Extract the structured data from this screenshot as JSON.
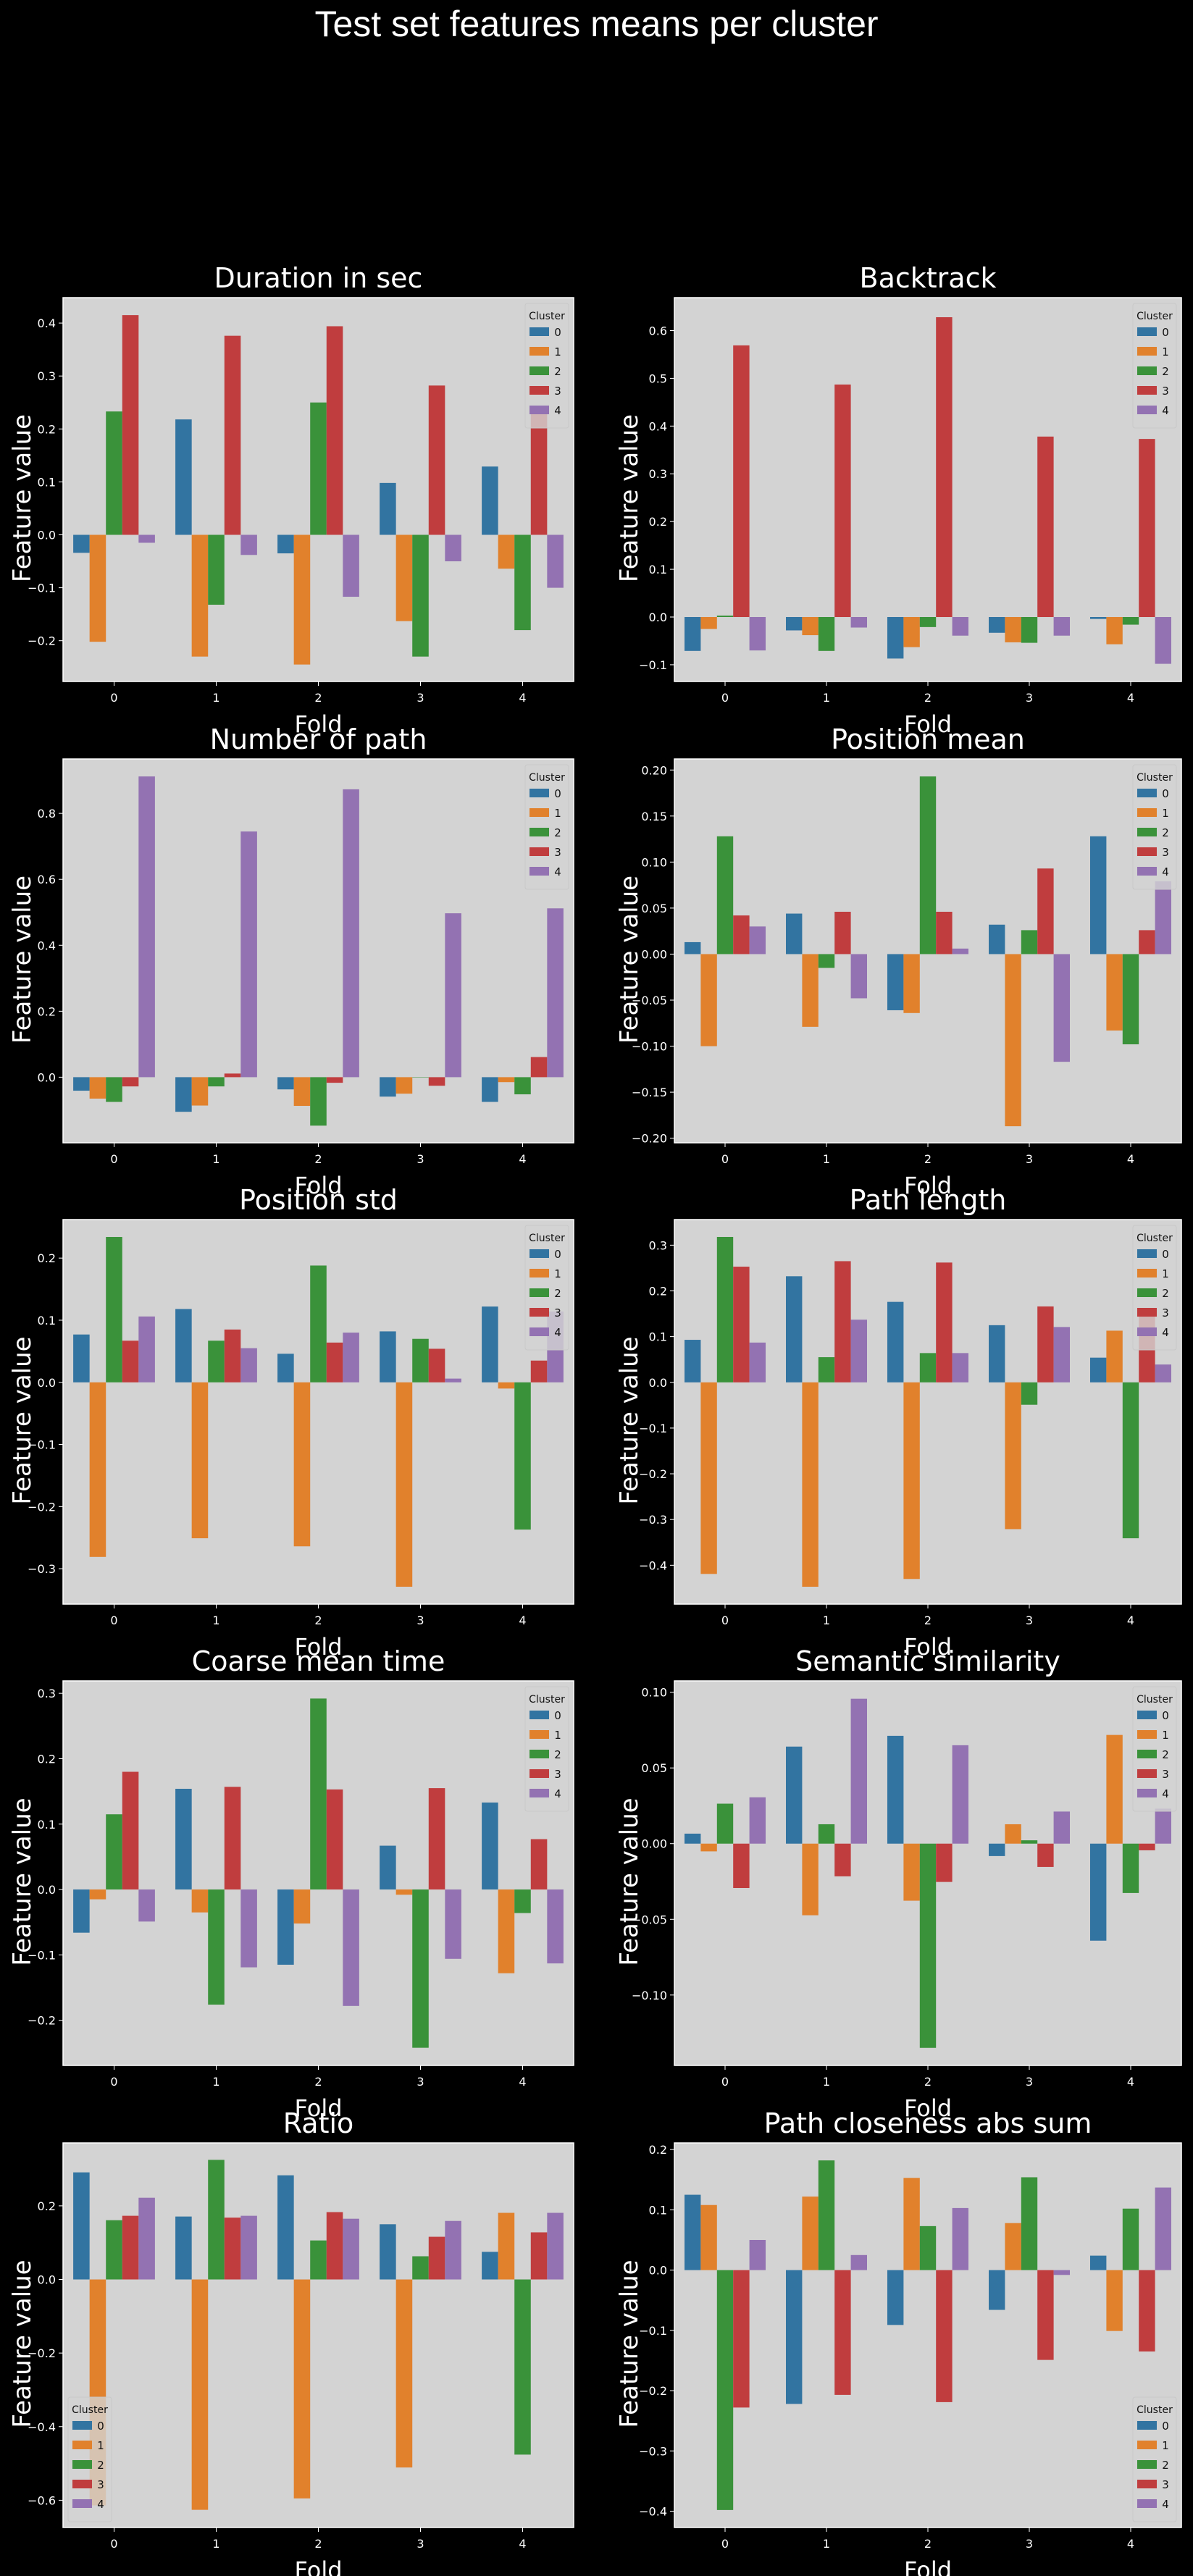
{
  "suptitle": "Test set features means per cluster",
  "colors": {
    "background": "#000000",
    "axes_face": "#d3d3d3",
    "text": "#ffffff",
    "palette": [
      "#3274a1",
      "#e1812c",
      "#3a923a",
      "#c03d3e",
      "#9372b2"
    ]
  },
  "chart_data": [
    {
      "type": "bar",
      "title": "Duration in sec",
      "xlabel": "Fold",
      "ylabel": "Feature value",
      "categories": [
        "0",
        "1",
        "2",
        "3",
        "4"
      ],
      "ylim": [
        -0.277,
        0.448
      ],
      "yticks": [
        -0.2,
        -0.1,
        0.0,
        0.1,
        0.2,
        0.3,
        0.4
      ],
      "ytick_labels": [
        "−0.2",
        "−0.1",
        "0.0",
        "0.1",
        "0.2",
        "0.3",
        "0.4"
      ],
      "legend": {
        "title": "Cluster",
        "placement": "upper right"
      },
      "series": [
        {
          "name": "0",
          "values": [
            -0.034,
            0.218,
            -0.035,
            0.098,
            0.129
          ]
        },
        {
          "name": "1",
          "values": [
            -0.202,
            -0.23,
            -0.245,
            -0.163,
            -0.064
          ]
        },
        {
          "name": "2",
          "values": [
            0.233,
            -0.132,
            0.25,
            -0.23,
            -0.18
          ]
        },
        {
          "name": "3",
          "values": [
            0.415,
            0.376,
            0.394,
            0.282,
            0.23
          ]
        },
        {
          "name": "4",
          "values": [
            -0.015,
            -0.038,
            -0.117,
            -0.05,
            -0.1
          ]
        }
      ]
    },
    {
      "type": "bar",
      "title": "Backtrack",
      "xlabel": "Fold",
      "ylabel": "Feature value",
      "categories": [
        "0",
        "1",
        "2",
        "3",
        "4"
      ],
      "ylim": [
        -0.135,
        0.669
      ],
      "yticks": [
        -0.1,
        0.0,
        0.1,
        0.2,
        0.3,
        0.4,
        0.5,
        0.6
      ],
      "ytick_labels": [
        "−0.1",
        "0.0",
        "0.1",
        "0.2",
        "0.3",
        "0.4",
        "0.5",
        "0.6"
      ],
      "legend": {
        "title": "Cluster",
        "placement": "upper right"
      },
      "series": [
        {
          "name": "0",
          "values": [
            -0.071,
            -0.028,
            -0.087,
            -0.033,
            -0.004
          ]
        },
        {
          "name": "1",
          "values": [
            -0.025,
            -0.038,
            -0.063,
            -0.053,
            -0.057
          ]
        },
        {
          "name": "2",
          "values": [
            0.003,
            -0.071,
            -0.021,
            -0.054,
            -0.016
          ]
        },
        {
          "name": "3",
          "values": [
            0.569,
            0.487,
            0.628,
            0.378,
            0.373
          ]
        },
        {
          "name": "4",
          "values": [
            -0.07,
            -0.022,
            -0.039,
            -0.039,
            -0.098
          ]
        }
      ]
    },
    {
      "type": "bar",
      "title": "Number of path",
      "xlabel": "Fold",
      "ylabel": "Feature value",
      "categories": [
        "0",
        "1",
        "2",
        "3",
        "4"
      ],
      "ylim": [
        -0.199,
        0.965
      ],
      "yticks": [
        0.0,
        0.2,
        0.4,
        0.6,
        0.8
      ],
      "ytick_labels": [
        "0.0",
        "0.2",
        "0.4",
        "0.6",
        "0.8"
      ],
      "legend": {
        "title": "Cluster",
        "placement": "upper right"
      },
      "series": [
        {
          "name": "0",
          "values": [
            -0.041,
            -0.105,
            -0.037,
            -0.059,
            -0.075
          ]
        },
        {
          "name": "1",
          "values": [
            -0.065,
            -0.086,
            -0.087,
            -0.05,
            -0.015
          ]
        },
        {
          "name": "2",
          "values": [
            -0.075,
            -0.028,
            -0.147,
            -0.001,
            -0.052
          ]
        },
        {
          "name": "3",
          "values": [
            -0.028,
            0.011,
            -0.017,
            -0.026,
            0.061
          ]
        },
        {
          "name": "4",
          "values": [
            0.912,
            0.745,
            0.873,
            0.497,
            0.512
          ]
        }
      ]
    },
    {
      "type": "bar",
      "title": "Position mean",
      "xlabel": "Fold",
      "ylabel": "Feature value",
      "categories": [
        "0",
        "1",
        "2",
        "3",
        "4"
      ],
      "ylim": [
        -0.205,
        0.212
      ],
      "yticks": [
        -0.2,
        -0.15,
        -0.1,
        -0.05,
        0.0,
        0.05,
        0.1,
        0.15,
        0.2
      ],
      "ytick_labels": [
        "−0.20",
        "−0.15",
        "−0.10",
        "−0.05",
        "0.00",
        "0.05",
        "0.10",
        "0.15",
        "0.20"
      ],
      "legend": {
        "title": "Cluster",
        "placement": "upper right"
      },
      "series": [
        {
          "name": "0",
          "values": [
            0.013,
            0.044,
            -0.061,
            0.032,
            0.128
          ]
        },
        {
          "name": "1",
          "values": [
            -0.1,
            -0.079,
            -0.064,
            -0.187,
            -0.083
          ]
        },
        {
          "name": "2",
          "values": [
            0.128,
            -0.015,
            0.193,
            0.026,
            -0.098
          ]
        },
        {
          "name": "3",
          "values": [
            0.042,
            0.046,
            0.046,
            0.093,
            0.026
          ]
        },
        {
          "name": "4",
          "values": [
            0.03,
            -0.048,
            0.006,
            -0.117,
            0.079
          ]
        }
      ]
    },
    {
      "type": "bar",
      "title": "Position std",
      "xlabel": "Fold",
      "ylabel": "Feature value",
      "categories": [
        "0",
        "1",
        "2",
        "3",
        "4"
      ],
      "ylim": [
        -0.357,
        0.262
      ],
      "yticks": [
        -0.3,
        -0.2,
        -0.1,
        0.0,
        0.1,
        0.2
      ],
      "ytick_labels": [
        "−0.3",
        "−0.2",
        "−0.1",
        "0.0",
        "0.1",
        "0.2"
      ],
      "legend": {
        "title": "Cluster",
        "placement": "upper right"
      },
      "series": [
        {
          "name": "0",
          "values": [
            0.077,
            0.118,
            0.046,
            0.082,
            0.122
          ]
        },
        {
          "name": "1",
          "values": [
            -0.281,
            -0.251,
            -0.264,
            -0.329,
            -0.01
          ]
        },
        {
          "name": "2",
          "values": [
            0.234,
            0.067,
            0.188,
            0.07,
            -0.237
          ]
        },
        {
          "name": "3",
          "values": [
            0.067,
            0.085,
            0.064,
            0.054,
            0.035
          ]
        },
        {
          "name": "4",
          "values": [
            0.106,
            0.055,
            0.08,
            0.006,
            0.114
          ]
        }
      ]
    },
    {
      "type": "bar",
      "title": "Path length",
      "xlabel": "Fold",
      "ylabel": "Feature value",
      "categories": [
        "0",
        "1",
        "2",
        "3",
        "4"
      ],
      "ylim": [
        -0.485,
        0.356
      ],
      "yticks": [
        -0.4,
        -0.3,
        -0.2,
        -0.1,
        0.0,
        0.1,
        0.2,
        0.3
      ],
      "ytick_labels": [
        "−0.4",
        "−0.3",
        "−0.2",
        "−0.1",
        "0.0",
        "0.1",
        "0.2",
        "0.3"
      ],
      "legend": {
        "title": "Cluster",
        "placement": "upper right"
      },
      "series": [
        {
          "name": "0",
          "values": [
            0.093,
            0.232,
            0.176,
            0.125,
            0.054
          ]
        },
        {
          "name": "1",
          "values": [
            -0.419,
            -0.447,
            -0.43,
            -0.321,
            0.113
          ]
        },
        {
          "name": "2",
          "values": [
            0.318,
            0.055,
            0.064,
            -0.049,
            -0.341
          ]
        },
        {
          "name": "3",
          "values": [
            0.253,
            0.265,
            0.262,
            0.166,
            0.155
          ]
        },
        {
          "name": "4",
          "values": [
            0.087,
            0.137,
            0.064,
            0.121,
            0.039
          ]
        }
      ]
    },
    {
      "type": "bar",
      "title": "Coarse mean time",
      "xlabel": "Fold",
      "ylabel": "Feature value",
      "categories": [
        "0",
        "1",
        "2",
        "3",
        "4"
      ],
      "ylim": [
        -0.269,
        0.319
      ],
      "yticks": [
        -0.2,
        -0.1,
        0.0,
        0.1,
        0.2,
        0.3
      ],
      "ytick_labels": [
        "−0.2",
        "−0.1",
        "0.0",
        "0.1",
        "0.2",
        "0.3"
      ],
      "legend": {
        "title": "Cluster",
        "placement": "upper right"
      },
      "series": [
        {
          "name": "0",
          "values": [
            -0.066,
            0.154,
            -0.115,
            0.067,
            0.133
          ]
        },
        {
          "name": "1",
          "values": [
            -0.015,
            -0.035,
            -0.052,
            -0.008,
            -0.128
          ]
        },
        {
          "name": "2",
          "values": [
            0.115,
            -0.176,
            0.292,
            -0.242,
            -0.036
          ]
        },
        {
          "name": "3",
          "values": [
            0.18,
            0.157,
            0.153,
            0.155,
            0.077
          ]
        },
        {
          "name": "4",
          "values": [
            -0.049,
            -0.119,
            -0.178,
            -0.106,
            -0.113
          ]
        }
      ]
    },
    {
      "type": "bar",
      "title": "Semantic similarity",
      "xlabel": "Fold",
      "ylabel": "Feature value",
      "categories": [
        "0",
        "1",
        "2",
        "3",
        "4"
      ],
      "ylim": [
        -0.1465,
        0.1075
      ],
      "yticks": [
        -0.1,
        -0.05,
        0.0,
        0.05,
        0.1
      ],
      "ytick_labels": [
        "−0.10",
        "−0.05",
        "0.00",
        "0.05",
        "0.10"
      ],
      "legend": {
        "title": "Cluster",
        "placement": "upper right"
      },
      "series": [
        {
          "name": "0",
          "values": [
            0.0066,
            0.0641,
            0.0712,
            -0.0082,
            -0.0641
          ]
        },
        {
          "name": "1",
          "values": [
            -0.0051,
            -0.0473,
            -0.0377,
            0.0128,
            0.0718
          ]
        },
        {
          "name": "2",
          "values": [
            0.0264,
            0.0128,
            -0.1349,
            0.0022,
            -0.0326
          ]
        },
        {
          "name": "3",
          "values": [
            -0.0293,
            -0.0216,
            -0.0253,
            -0.0154,
            -0.0044
          ]
        },
        {
          "name": "4",
          "values": [
            0.0306,
            0.0957,
            0.065,
            0.0212,
            0.0231
          ]
        }
      ]
    },
    {
      "type": "bar",
      "title": "Ratio",
      "xlabel": "Fold",
      "ylabel": "Feature value",
      "categories": [
        "0",
        "1",
        "2",
        "3",
        "4"
      ],
      "ylim": [
        -0.674,
        0.371
      ],
      "yticks": [
        -0.6,
        -0.4,
        -0.2,
        0.0,
        0.2
      ],
      "ytick_labels": [
        "−0.6",
        "−0.4",
        "−0.2",
        "0.0",
        "0.2"
      ],
      "legend": {
        "title": "Cluster",
        "placement": "lower left"
      },
      "series": [
        {
          "name": "0",
          "values": [
            0.291,
            0.171,
            0.283,
            0.15,
            0.075
          ]
        },
        {
          "name": "1",
          "values": [
            -0.614,
            -0.626,
            -0.595,
            -0.511,
            0.181
          ]
        },
        {
          "name": "2",
          "values": [
            0.161,
            0.325,
            0.106,
            0.063,
            -0.476
          ]
        },
        {
          "name": "3",
          "values": [
            0.173,
            0.168,
            0.183,
            0.116,
            0.128
          ]
        },
        {
          "name": "4",
          "values": [
            0.222,
            0.173,
            0.165,
            0.159,
            0.181
          ]
        }
      ]
    },
    {
      "type": "bar",
      "title": "Path closeness abs sum",
      "xlabel": "Fold",
      "ylabel": "Feature value",
      "categories": [
        "0",
        "1",
        "2",
        "3",
        "4"
      ],
      "ylim": [
        -0.427,
        0.211
      ],
      "yticks": [
        -0.4,
        -0.3,
        -0.2,
        -0.1,
        0.0,
        0.1,
        0.2
      ],
      "ytick_labels": [
        "−0.4",
        "−0.3",
        "−0.2",
        "−0.1",
        "0.0",
        "0.1",
        "0.2"
      ],
      "legend": {
        "title": "Cluster",
        "placement": "lower right"
      },
      "series": [
        {
          "name": "0",
          "values": [
            0.125,
            -0.222,
            -0.091,
            -0.066,
            0.024
          ]
        },
        {
          "name": "1",
          "values": [
            0.108,
            0.122,
            0.153,
            0.078,
            -0.101
          ]
        },
        {
          "name": "2",
          "values": [
            -0.398,
            0.182,
            0.073,
            0.154,
            0.102
          ]
        },
        {
          "name": "3",
          "values": [
            -0.228,
            -0.207,
            -0.219,
            -0.149,
            -0.135
          ]
        },
        {
          "name": "4",
          "values": [
            0.05,
            0.025,
            0.103,
            -0.008,
            0.137
          ]
        }
      ]
    }
  ]
}
